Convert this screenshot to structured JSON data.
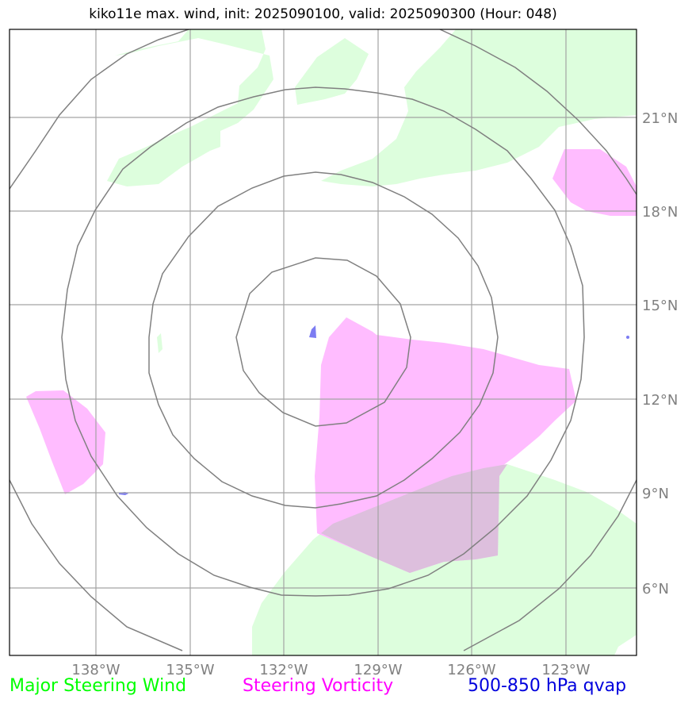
{
  "title": "kiko11e max. wind, init: 2025090100, valid: 2025090300 (Hour: 048)",
  "lon_labels": [
    "138°W",
    "135°W",
    "132°W",
    "129°W",
    "126°W",
    "123°W"
  ],
  "lat_labels": [
    "21°N",
    "18°N",
    "15°N",
    "12°N",
    "9°N",
    "6°N"
  ],
  "legend": {
    "wind": {
      "label": "Major Steering Wind",
      "color": "#00ff00"
    },
    "vorticity": {
      "label": "Steering Vorticity",
      "color": "#ff00ff"
    },
    "qvap": {
      "label": "500-850 hPa qvap",
      "color": "#0000dd"
    }
  },
  "colors": {
    "wind_fill": "#ddfedd",
    "vorticity_fill": "#ffbcff",
    "overlap_fill": "#ddbfdd",
    "qvap_fill": "#7c7cf2",
    "grid": "#a3a3a3",
    "range_rings": "#808080"
  },
  "features": {
    "storm_center": {
      "lon": -131.0,
      "lat": 13.4
    },
    "range_rings_count": 4
  }
}
